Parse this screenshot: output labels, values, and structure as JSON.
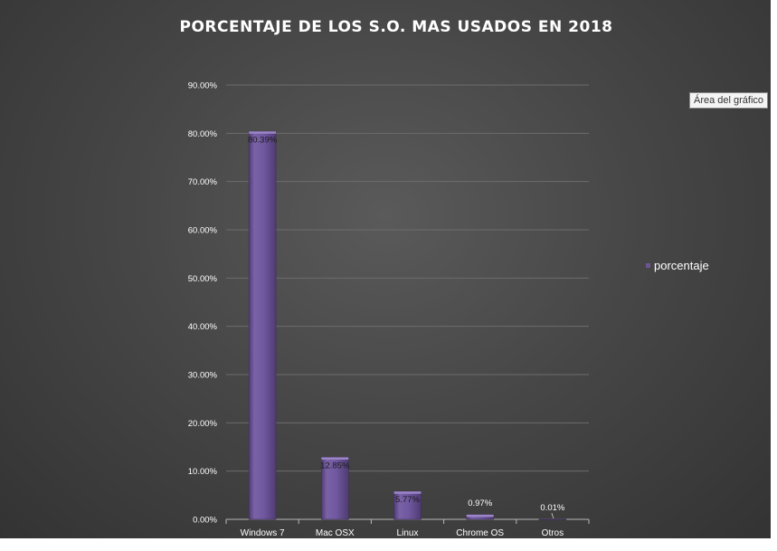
{
  "chart_data": {
    "type": "bar",
    "title": "PORCENTAJE DE LOS S.O. MAS USADOS EN 2018",
    "categories": [
      "Windows 7",
      "Mac OSX",
      "Linux",
      "Chrome OS",
      "Otros"
    ],
    "series": [
      {
        "name": "porcentaje",
        "values": [
          80.39,
          12.85,
          5.77,
          0.97,
          0.01
        ],
        "labels": [
          "80.39%",
          "12.85%",
          "5.77%",
          "0.97%",
          "0.01%"
        ]
      }
    ],
    "ylim": [
      0,
      90
    ],
    "yticks": [
      "0.00%",
      "10.00%",
      "20.00%",
      "30.00%",
      "40.00%",
      "50.00%",
      "60.00%",
      "70.00%",
      "80.00%",
      "90.00%"
    ],
    "grid": true,
    "legend": "right",
    "bar_color": "#6e5596"
  },
  "tooltip": "Área del gráfico"
}
